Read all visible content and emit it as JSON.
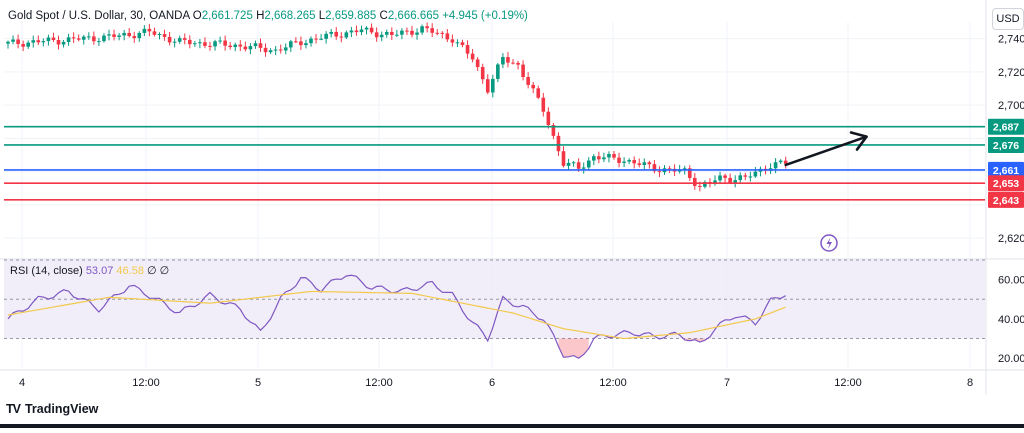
{
  "header": {
    "symbol": "Gold Spot / U.S. Dollar, 30, OANDA",
    "open_label": "O",
    "open": "2,661.725",
    "high_label": "H",
    "high": "2,668.265",
    "low_label": "L",
    "low": "2,659.885",
    "close_label": "C",
    "close": "2,666.665",
    "change": "+4.945 (+0.19%)"
  },
  "currency_button": "USD",
  "rsi_legend": {
    "label": "RSI (14, close)",
    "rsi": "53.07",
    "ma": "46.58",
    "extra1": "∅",
    "extra2": "∅"
  },
  "brand": "TradingView",
  "colors": {
    "up": "#089981",
    "down": "#f23645",
    "rsi": "#7e57c2",
    "rsi_ma": "#f2c94c",
    "green_line": "#089981",
    "blue_line": "#2962ff",
    "red_line": "#f23645"
  },
  "chart_data": [
    {
      "type": "candlestick",
      "title": "Gold Spot / U.S. Dollar, 30, OANDA",
      "ylim": [
        2608,
        2750
      ],
      "y_ticks": [
        2620,
        2700,
        2720,
        2740
      ],
      "y_tick_labels": [
        "2,620",
        "2,700",
        "2,720",
        "2,740"
      ],
      "x_tick_labels": [
        "4",
        "12:00",
        "5",
        "12:00",
        "6",
        "12:00",
        "7",
        "12:00",
        "8"
      ],
      "horizontal_levels": [
        {
          "value": 2687,
          "label": "2,687",
          "color": "#089981"
        },
        {
          "value": 2676,
          "label": "2,676",
          "color": "#089981"
        },
        {
          "value": 2661,
          "label": "2,661",
          "color": "#2962ff"
        },
        {
          "value": 2653,
          "label": "2,653",
          "color": "#f23645"
        },
        {
          "value": 2643,
          "label": "2,643",
          "color": "#f23645"
        }
      ],
      "anchors": [
        {
          "bar": 0,
          "price": 2737
        },
        {
          "bar": 10,
          "price": 2739
        },
        {
          "bar": 20,
          "price": 2741
        },
        {
          "bar": 28,
          "price": 2744
        },
        {
          "bar": 34,
          "price": 2738
        },
        {
          "bar": 45,
          "price": 2736
        },
        {
          "bar": 53,
          "price": 2733
        },
        {
          "bar": 58,
          "price": 2738
        },
        {
          "bar": 64,
          "price": 2742
        },
        {
          "bar": 70,
          "price": 2745
        },
        {
          "bar": 76,
          "price": 2742
        },
        {
          "bar": 82,
          "price": 2746
        },
        {
          "bar": 88,
          "price": 2740
        },
        {
          "bar": 92,
          "price": 2728
        },
        {
          "bar": 95,
          "price": 2710
        },
        {
          "bar": 98,
          "price": 2728
        },
        {
          "bar": 101,
          "price": 2724
        },
        {
          "bar": 104,
          "price": 2708
        },
        {
          "bar": 106,
          "price": 2697
        },
        {
          "bar": 110,
          "price": 2665
        },
        {
          "bar": 113,
          "price": 2662
        },
        {
          "bar": 116,
          "price": 2669
        },
        {
          "bar": 122,
          "price": 2667
        },
        {
          "bar": 128,
          "price": 2662
        },
        {
          "bar": 134,
          "price": 2660
        },
        {
          "bar": 137,
          "price": 2651
        },
        {
          "bar": 141,
          "price": 2656
        },
        {
          "bar": 146,
          "price": 2656
        },
        {
          "bar": 151,
          "price": 2664
        },
        {
          "bar": 154,
          "price": 2665
        }
      ],
      "trend_arrow": {
        "from": {
          "bar": 154,
          "price": 2664
        },
        "to": {
          "bar": 170,
          "price": 2681
        }
      }
    },
    {
      "type": "line",
      "title": "RSI (14, close)",
      "ylim": [
        15,
        70
      ],
      "y_ticks": [
        20,
        40,
        60
      ],
      "y_tick_labels": [
        "20.00",
        "40.00",
        "60.00"
      ],
      "bands": [
        30,
        50,
        70
      ],
      "series": [
        {
          "name": "RSI",
          "anchors": [
            {
              "bar": 0,
              "value": 40
            },
            {
              "bar": 6,
              "value": 50
            },
            {
              "bar": 12,
              "value": 54
            },
            {
              "bar": 18,
              "value": 45
            },
            {
              "bar": 24,
              "value": 57
            },
            {
              "bar": 28,
              "value": 52
            },
            {
              "bar": 34,
              "value": 43
            },
            {
              "bar": 40,
              "value": 52
            },
            {
              "bar": 46,
              "value": 45
            },
            {
              "bar": 50,
              "value": 33
            },
            {
              "bar": 54,
              "value": 50
            },
            {
              "bar": 58,
              "value": 61
            },
            {
              "bar": 62,
              "value": 55
            },
            {
              "bar": 67,
              "value": 63
            },
            {
              "bar": 72,
              "value": 56
            },
            {
              "bar": 78,
              "value": 54
            },
            {
              "bar": 84,
              "value": 58
            },
            {
              "bar": 88,
              "value": 52
            },
            {
              "bar": 92,
              "value": 38
            },
            {
              "bar": 95,
              "value": 30
            },
            {
              "bar": 98,
              "value": 50
            },
            {
              "bar": 102,
              "value": 46
            },
            {
              "bar": 106,
              "value": 40
            },
            {
              "bar": 110,
              "value": 22
            },
            {
              "bar": 113,
              "value": 19
            },
            {
              "bar": 116,
              "value": 30
            },
            {
              "bar": 120,
              "value": 32
            },
            {
              "bar": 124,
              "value": 33
            },
            {
              "bar": 128,
              "value": 31
            },
            {
              "bar": 133,
              "value": 32
            },
            {
              "bar": 137,
              "value": 27
            },
            {
              "bar": 140,
              "value": 35
            },
            {
              "bar": 144,
              "value": 42
            },
            {
              "bar": 148,
              "value": 38
            },
            {
              "bar": 151,
              "value": 49
            },
            {
              "bar": 154,
              "value": 53
            }
          ]
        },
        {
          "name": "RSI-based MA",
          "anchors": [
            {
              "bar": 0,
              "value": 42
            },
            {
              "bar": 20,
              "value": 51
            },
            {
              "bar": 40,
              "value": 48
            },
            {
              "bar": 60,
              "value": 54
            },
            {
              "bar": 80,
              "value": 53
            },
            {
              "bar": 100,
              "value": 43
            },
            {
              "bar": 110,
              "value": 35
            },
            {
              "bar": 122,
              "value": 30
            },
            {
              "bar": 135,
              "value": 33
            },
            {
              "bar": 148,
              "value": 40
            },
            {
              "bar": 154,
              "value": 46
            }
          ]
        }
      ]
    }
  ]
}
